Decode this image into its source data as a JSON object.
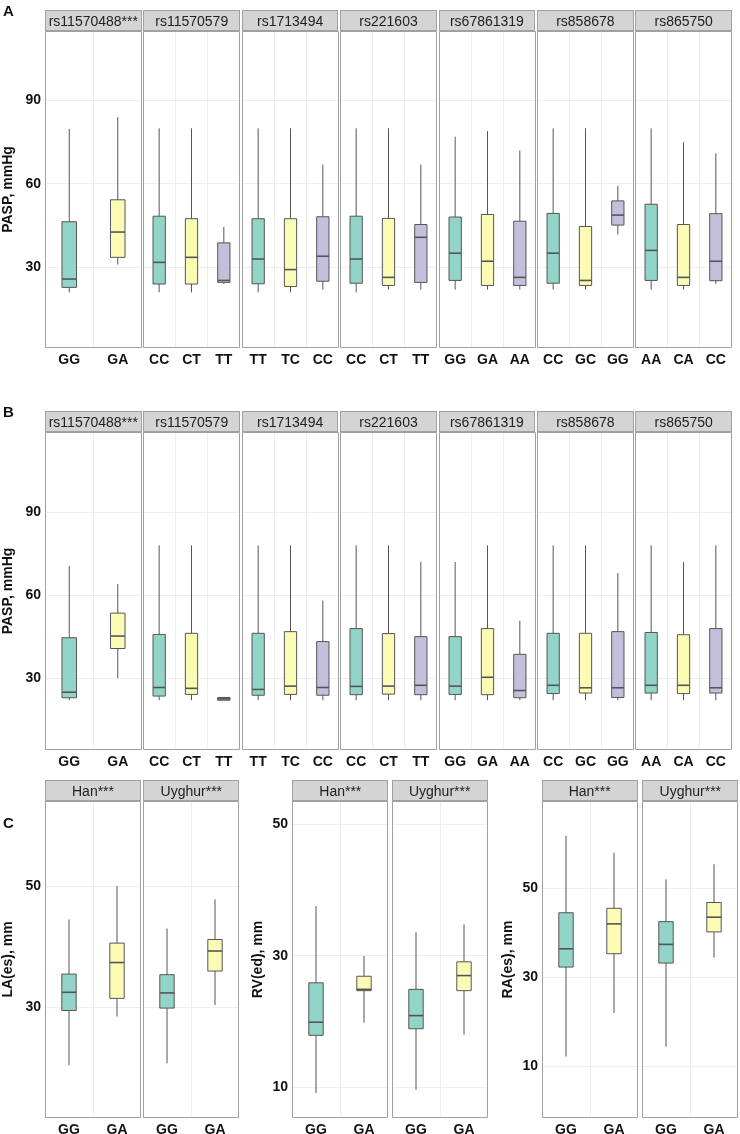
{
  "chart_data": [
    {
      "type": "box",
      "title": "rs11570488***",
      "ylabel": "PASP, mmHg",
      "annotations": [
        "A"
      ],
      "categories": [
        "GG",
        "GA"
      ],
      "colors": [
        "#92d5c8",
        "#fcfbb6"
      ],
      "ylim": [
        1,
        115
      ],
      "yticks": [
        30,
        60,
        90
      ],
      "grid": true,
      "boxes": [
        {
          "low": 21,
          "q1": 22.8,
          "median": 25.8,
          "q3": 46.4,
          "high": 79.8
        },
        {
          "low": 31,
          "q1": 33.6,
          "median": 42.7,
          "q3": 54.3,
          "high": 84
        }
      ]
    },
    {
      "type": "box",
      "title": "rs11570579",
      "tick_labels": "x",
      "categories": [
        "CC",
        "CT",
        "TT"
      ],
      "colors": [
        "#92d5c8",
        "#fcfbb6",
        "#c4c0dc"
      ],
      "ylim": [
        1,
        115
      ],
      "yticks": [
        30,
        60,
        90
      ],
      "grid": true,
      "boxes": [
        {
          "low": 21,
          "q1": 24,
          "median": 31.8,
          "q3": 48.4,
          "high": 80
        },
        {
          "low": 21,
          "q1": 24,
          "median": 33.6,
          "q3": 47.5,
          "high": 80
        },
        {
          "low": 24,
          "q1": 24.6,
          "median": 25.3,
          "q3": 38.8,
          "high": 44.5
        }
      ]
    },
    {
      "type": "box",
      "title": "rs1713494",
      "tick_labels": "x",
      "categories": [
        "TT",
        "TC",
        "CC"
      ],
      "colors": [
        "#92d5c8",
        "#fcfbb6",
        "#c4c0dc"
      ],
      "ylim": [
        1,
        115
      ],
      "yticks": [
        30,
        60,
        90
      ],
      "grid": true,
      "boxes": [
        {
          "low": 21,
          "q1": 24.1,
          "median": 33,
          "q3": 47.5,
          "high": 80
        },
        {
          "low": 21,
          "q1": 23.1,
          "median": 29.2,
          "q3": 47.5,
          "high": 80
        },
        {
          "low": 22,
          "q1": 25,
          "median": 34,
          "q3": 48.2,
          "high": 67
        }
      ]
    },
    {
      "type": "box",
      "title": "rs221603",
      "tick_labels": "x",
      "categories": [
        "CC",
        "CT",
        "TT"
      ],
      "colors": [
        "#92d5c8",
        "#fcfbb6",
        "#c4c0dc"
      ],
      "ylim": [
        1,
        115
      ],
      "yticks": [
        30,
        60,
        90
      ],
      "grid": true,
      "boxes": [
        {
          "low": 21,
          "q1": 24.3,
          "median": 33,
          "q3": 48.4,
          "high": 80
        },
        {
          "low": 22,
          "q1": 23.5,
          "median": 26.4,
          "q3": 47.6,
          "high": 80
        },
        {
          "low": 22,
          "q1": 24.6,
          "median": 40.8,
          "q3": 45.4,
          "high": 67
        }
      ]
    },
    {
      "type": "box",
      "title": "rs67861319",
      "tick_labels": "x",
      "categories": [
        "GG",
        "GA",
        "AA"
      ],
      "colors": [
        "#92d5c8",
        "#fcfbb6",
        "#c4c0dc"
      ],
      "ylim": [
        1,
        115
      ],
      "yticks": [
        30,
        60,
        90
      ],
      "grid": true,
      "boxes": [
        {
          "low": 22,
          "q1": 25.3,
          "median": 35.1,
          "q3": 48.1,
          "high": 77
        },
        {
          "low": 22,
          "q1": 23.5,
          "median": 32.2,
          "q3": 49,
          "high": 79
        },
        {
          "low": 22,
          "q1": 23.5,
          "median": 26.4,
          "q3": 46.6,
          "high": 72
        }
      ]
    },
    {
      "type": "box",
      "title": "rs858678",
      "tick_labels": "x",
      "categories": [
        "CC",
        "GC",
        "GG"
      ],
      "colors": [
        "#92d5c8",
        "#fcfbb6",
        "#c4c0dc"
      ],
      "ylim": [
        1,
        115
      ],
      "yticks": [
        30,
        60,
        90
      ],
      "grid": true,
      "boxes": [
        {
          "low": 22,
          "q1": 24.3,
          "median": 35.1,
          "q3": 49.4,
          "high": 80
        },
        {
          "low": 22,
          "q1": 23.5,
          "median": 25.3,
          "q3": 44.7,
          "high": 80
        },
        {
          "low": 41.8,
          "q1": 45.2,
          "median": 48.8,
          "q3": 53.9,
          "high": 59.3
        }
      ]
    },
    {
      "type": "box",
      "title": "rs865750",
      "tick_labels": "x",
      "categories": [
        "AA",
        "CA",
        "CC"
      ],
      "colors": [
        "#92d5c8",
        "#fcfbb6",
        "#c4c0dc"
      ],
      "ylim": [
        1,
        115
      ],
      "yticks": [
        30,
        60,
        90
      ],
      "grid": true,
      "boxes": [
        {
          "low": 22,
          "q1": 25.3,
          "median": 36.1,
          "q3": 52.7,
          "high": 80
        },
        {
          "low": 22,
          "q1": 23.5,
          "median": 26.4,
          "q3": 45.4,
          "high": 75
        },
        {
          "low": 24,
          "q1": 25.2,
          "median": 32.2,
          "q3": 49.3,
          "high": 71
        }
      ]
    },
    {
      "type": "box",
      "title": "rs11570488***",
      "ylabel": "PASP, mmHg",
      "annotations": [
        "B"
      ],
      "categories": [
        "GG",
        "GA"
      ],
      "colors": [
        "#92d5c8",
        "#fcfbb6"
      ],
      "ylim": [
        4,
        119
      ],
      "yticks": [
        30,
        60,
        90
      ],
      "grid": true,
      "boxes": [
        {
          "low": 22,
          "q1": 22.9,
          "median": 24.9,
          "q3": 44.6,
          "high": 70.6
        },
        {
          "low": 30,
          "q1": 40.7,
          "median": 45.2,
          "q3": 53.5,
          "high": 64
        }
      ]
    },
    {
      "type": "box",
      "title": "rs11570579",
      "tick_labels": "x",
      "categories": [
        "CC",
        "CT",
        "TT"
      ],
      "colors": [
        "#92d5c8",
        "#fcfbb6",
        "#c4c0dc"
      ],
      "ylim": [
        4,
        119
      ],
      "yticks": [
        30,
        60,
        90
      ],
      "grid": true,
      "boxes": [
        {
          "low": 22,
          "q1": 23.5,
          "median": 26.6,
          "q3": 45.8,
          "high": 78
        },
        {
          "low": 22,
          "q1": 24.1,
          "median": 26.3,
          "q3": 46.2,
          "high": 78
        },
        {
          "low": 22,
          "q1": 22,
          "median": 22.5,
          "q3": 23,
          "high": 23
        }
      ]
    },
    {
      "type": "box",
      "title": "rs1713494",
      "tick_labels": "x",
      "categories": [
        "TT",
        "TC",
        "CC"
      ],
      "colors": [
        "#92d5c8",
        "#fcfbb6",
        "#c4c0dc"
      ],
      "ylim": [
        4,
        119
      ],
      "yticks": [
        30,
        60,
        90
      ],
      "grid": true,
      "boxes": [
        {
          "low": 22,
          "q1": 23.8,
          "median": 25.9,
          "q3": 46.2,
          "high": 78
        },
        {
          "low": 22,
          "q1": 24.1,
          "median": 27.1,
          "q3": 46.8,
          "high": 78
        },
        {
          "low": 22,
          "q1": 23.8,
          "median": 26.6,
          "q3": 43.2,
          "high": 58
        }
      ]
    },
    {
      "type": "box",
      "title": "rs221603",
      "tick_labels": "x",
      "categories": [
        "CC",
        "CT",
        "TT"
      ],
      "colors": [
        "#92d5c8",
        "#fcfbb6",
        "#c4c0dc"
      ],
      "ylim": [
        4,
        119
      ],
      "yticks": [
        30,
        60,
        90
      ],
      "grid": true,
      "boxes": [
        {
          "low": 22,
          "q1": 24,
          "median": 27,
          "q3": 47.9,
          "high": 78
        },
        {
          "low": 22,
          "q1": 24.2,
          "median": 27.1,
          "q3": 46.1,
          "high": 78
        },
        {
          "low": 22,
          "q1": 24,
          "median": 27.4,
          "q3": 45,
          "high": 72
        }
      ]
    },
    {
      "type": "box",
      "title": "rs67861319",
      "tick_labels": "x",
      "categories": [
        "GG",
        "GA",
        "AA"
      ],
      "colors": [
        "#92d5c8",
        "#fcfbb6",
        "#c4c0dc"
      ],
      "ylim": [
        4,
        119
      ],
      "yticks": [
        30,
        60,
        90
      ],
      "grid": true,
      "boxes": [
        {
          "low": 22,
          "q1": 24.1,
          "median": 27.1,
          "q3": 45,
          "high": 72
        },
        {
          "low": 22,
          "q1": 24,
          "median": 30.3,
          "q3": 47.9,
          "high": 78
        },
        {
          "low": 22,
          "q1": 22.9,
          "median": 25.5,
          "q3": 38.6,
          "high": 50.7
        }
      ]
    },
    {
      "type": "box",
      "title": "rs858678",
      "tick_labels": "x",
      "categories": [
        "CC",
        "GC",
        "GG"
      ],
      "colors": [
        "#92d5c8",
        "#fcfbb6",
        "#c4c0dc"
      ],
      "ylim": [
        4,
        119
      ],
      "yticks": [
        30,
        60,
        90
      ],
      "grid": true,
      "boxes": [
        {
          "low": 22,
          "q1": 24.4,
          "median": 27.4,
          "q3": 46.2,
          "high": 78
        },
        {
          "low": 22,
          "q1": 24.6,
          "median": 26.5,
          "q3": 46.2,
          "high": 78
        },
        {
          "low": 22,
          "q1": 23,
          "median": 26.5,
          "q3": 46.8,
          "high": 68
        }
      ]
    },
    {
      "type": "box",
      "title": "rs865750",
      "tick_labels": "x",
      "categories": [
        "AA",
        "CA",
        "CC"
      ],
      "colors": [
        "#92d5c8",
        "#fcfbb6",
        "#c4c0dc"
      ],
      "ylim": [
        4,
        119
      ],
      "yticks": [
        30,
        60,
        90
      ],
      "grid": true,
      "boxes": [
        {
          "low": 22,
          "q1": 24.6,
          "median": 27.4,
          "q3": 46.5,
          "high": 78
        },
        {
          "low": 22,
          "q1": 24.4,
          "median": 27.4,
          "q3": 45.7,
          "high": 72
        },
        {
          "low": 22,
          "q1": 24.6,
          "median": 26.5,
          "q3": 47.9,
          "high": 78
        }
      ]
    },
    {
      "type": "box",
      "title": "Han***",
      "ylabel": "LA(es), mm",
      "annotations": [
        "C"
      ],
      "categories": [
        "GG",
        "GA"
      ],
      "colors": [
        "#92d5c8",
        "#fcfbb6"
      ],
      "ylim": [
        11.8,
        64
      ],
      "yticks": [
        30,
        50
      ],
      "grid": true,
      "boxes": [
        {
          "low": 20.5,
          "q1": 29.5,
          "median": 32.5,
          "q3": 35.5,
          "high": 44.5
        },
        {
          "low": 28.5,
          "q1": 31.5,
          "median": 37.4,
          "q3": 40.6,
          "high": 50
        }
      ]
    },
    {
      "type": "box",
      "title": "Uyghur***",
      "tick_labels": "x",
      "categories": [
        "GG",
        "GA"
      ],
      "colors": [
        "#92d5c8",
        "#fcfbb6"
      ],
      "ylim": [
        11.8,
        64
      ],
      "yticks": [
        30,
        50
      ],
      "grid": true,
      "boxes": [
        {
          "low": 20.8,
          "q1": 29.9,
          "median": 32.4,
          "q3": 35.4,
          "high": 43
        },
        {
          "low": 30.4,
          "q1": 36,
          "median": 39.3,
          "q3": 41.2,
          "high": 47.8
        }
      ]
    },
    {
      "type": "box",
      "title": "Han***",
      "ylabel": "RV(ed), mm",
      "categories": [
        "GG",
        "GA"
      ],
      "colors": [
        "#92d5c8",
        "#fcfbb6"
      ],
      "ylim": [
        5.3,
        53.6
      ],
      "yticks": [
        10,
        30,
        50
      ],
      "grid": true,
      "boxes": [
        {
          "low": 9.1,
          "q1": 17.9,
          "median": 19.9,
          "q3": 25.9,
          "high": 37.6
        },
        {
          "low": 19.8,
          "q1": 24.7,
          "median": 24.9,
          "q3": 26.9,
          "high": 30
        }
      ]
    },
    {
      "type": "box",
      "title": "Uyghur***",
      "tick_labels": "x",
      "categories": [
        "GG",
        "GA"
      ],
      "colors": [
        "#92d5c8",
        "#fcfbb6"
      ],
      "ylim": [
        5.3,
        53.6
      ],
      "yticks": [
        10,
        30,
        50
      ],
      "grid": true,
      "boxes": [
        {
          "low": 9.6,
          "q1": 18.9,
          "median": 20.9,
          "q3": 24.9,
          "high": 33.6
        },
        {
          "low": 18,
          "q1": 24.7,
          "median": 27,
          "q3": 29.1,
          "high": 34.8
        }
      ]
    },
    {
      "type": "box",
      "title": "Han***",
      "ylabel": "RA(es), mm",
      "categories": [
        "GG",
        "GA"
      ],
      "colors": [
        "#92d5c8",
        "#fcfbb6"
      ],
      "ylim": [
        -1.6,
        69.6
      ],
      "yticks": [
        10,
        30,
        50
      ],
      "grid": true,
      "boxes": [
        {
          "low": 12.2,
          "q1": 32.3,
          "median": 36.4,
          "q3": 44.5,
          "high": 61.8
        },
        {
          "low": 22,
          "q1": 35.3,
          "median": 42,
          "q3": 45.5,
          "high": 58
        }
      ]
    },
    {
      "type": "box",
      "title": "Uyghur***",
      "tick_labels": "x",
      "categories": [
        "GG",
        "GA"
      ],
      "colors": [
        "#92d5c8",
        "#fcfbb6"
      ],
      "ylim": [
        -1.6,
        69.6
      ],
      "yticks": [
        10,
        30,
        50
      ],
      "grid": true,
      "boxes": [
        {
          "low": 14.4,
          "q1": 33.2,
          "median": 37.4,
          "q3": 42.5,
          "high": 52
        },
        {
          "low": 34.4,
          "q1": 40.2,
          "median": 43.5,
          "q3": 46.8,
          "high": 55.4
        }
      ]
    }
  ]
}
